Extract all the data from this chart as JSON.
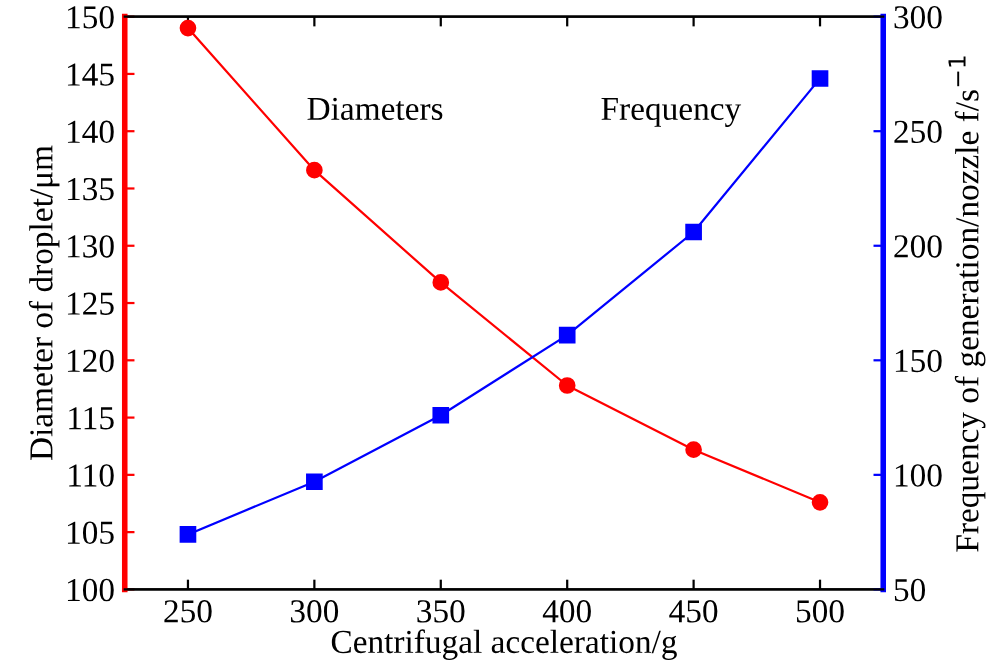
{
  "chart_data": {
    "type": "line",
    "xlabel": "Centrifugal acceleration/g",
    "ylabel": "Diameter of droplet/μm",
    "y2label": "Frequency of generation/nozzle f/s$^{−1}$",
    "x": [
      250,
      300,
      350,
      400,
      450,
      500
    ],
    "xlim": [
      225,
      525
    ],
    "xticks": [
      250,
      300,
      350,
      400,
      450,
      500
    ],
    "ylim": [
      100,
      150
    ],
    "yticks": [
      100,
      105,
      110,
      115,
      120,
      125,
      130,
      135,
      140,
      145,
      150
    ],
    "y2lim": [
      50,
      300
    ],
    "y2ticks": [
      50,
      100,
      150,
      200,
      250,
      300
    ],
    "grid": false,
    "legend": false,
    "line_style": "solid",
    "series": [
      {
        "name": "Diameters",
        "color": "#ff0000",
        "marker": "circle",
        "values": [
          149.0,
          136.6,
          126.8,
          117.8,
          112.2,
          107.6
        ]
      },
      {
        "name": "Frequency",
        "color": "#0000ff",
        "marker": "square",
        "axis": "y2",
        "values": [
          74,
          97,
          126,
          161,
          206,
          273
        ]
      }
    ]
  }
}
